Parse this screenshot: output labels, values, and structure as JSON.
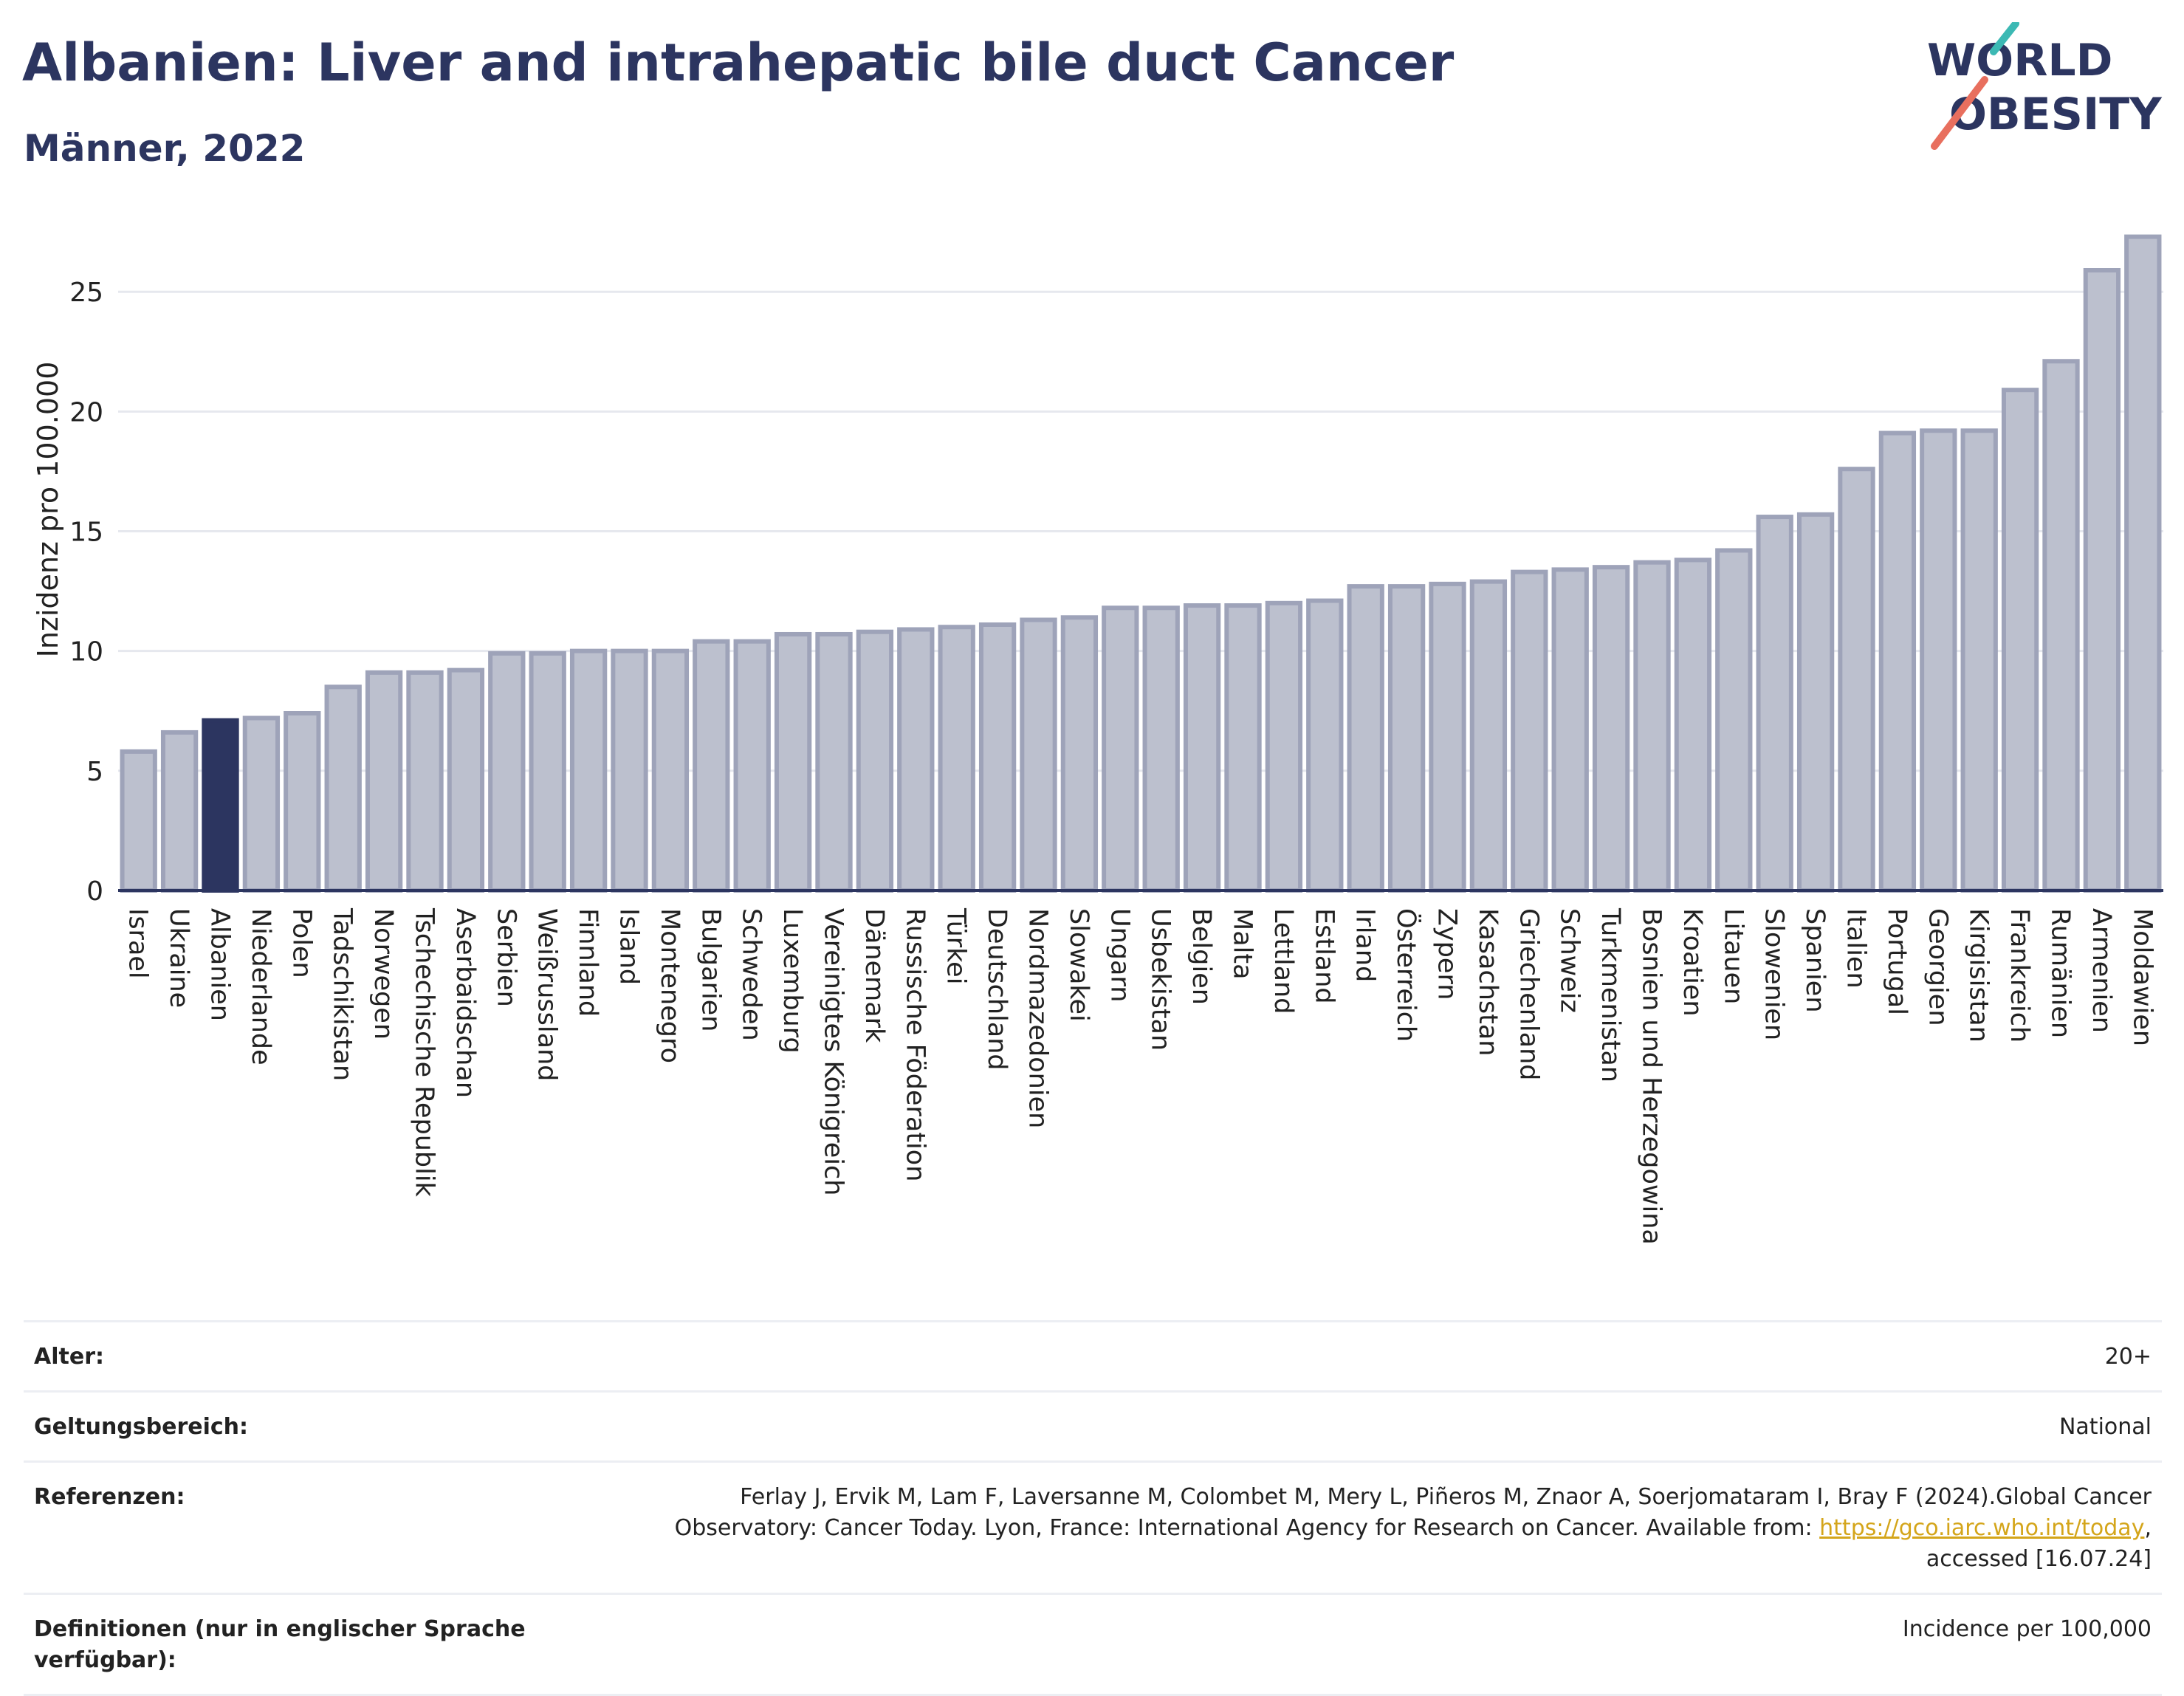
{
  "header": {
    "title": "Albanien: Liver and intrahepatic bile duct Cancer",
    "subtitle": "Männer, 2022"
  },
  "logo": {
    "line1": "WORLD",
    "line2": "OBESITY"
  },
  "chart_data": {
    "type": "bar",
    "ylabel": "Inzidenz pro 100.000",
    "xlabel": "",
    "ylim": [
      0,
      28
    ],
    "yticks": [
      0,
      5,
      10,
      15,
      20,
      25
    ],
    "grid": true,
    "highlight": "Albanien",
    "colors": {
      "default_fill": "#bcc0ce",
      "default_stroke": "#9ea3b9",
      "highlight_fill": "#2c3560"
    },
    "categories": [
      "Israel",
      "Ukraine",
      "Albanien",
      "Niederlande",
      "Polen",
      "Tadschikistan",
      "Norwegen",
      "Tschechische Republik",
      "Aserbaidschan",
      "Serbien",
      "Weißrussland",
      "Finnland",
      "Island",
      "Montenegro",
      "Bulgarien",
      "Schweden",
      "Luxemburg",
      "Vereinigtes Königreich",
      "Dänemark",
      "Russische Föderation",
      "Türkei",
      "Deutschland",
      "Nordmazedonien",
      "Slowakei",
      "Ungarn",
      "Usbekistan",
      "Belgien",
      "Malta",
      "Lettland",
      "Estland",
      "Irland",
      "Österreich",
      "Zypern",
      "Kasachstan",
      "Griechenland",
      "Schweiz",
      "Turkmenistan",
      "Bosnien und Herzegowina",
      "Kroatien",
      "Litauen",
      "Slowenien",
      "Spanien",
      "Italien",
      "Portugal",
      "Georgien",
      "Kirgisistan",
      "Frankreich",
      "Rumänien",
      "Armenien",
      "Moldawien"
    ],
    "values": [
      5.8,
      6.6,
      7.1,
      7.2,
      7.4,
      8.5,
      9.1,
      9.1,
      9.2,
      9.9,
      9.9,
      10.0,
      10.0,
      10.0,
      10.4,
      10.4,
      10.7,
      10.7,
      10.8,
      10.9,
      11.0,
      11.1,
      11.3,
      11.4,
      11.8,
      11.8,
      11.9,
      11.9,
      12.0,
      12.1,
      12.7,
      12.7,
      12.8,
      12.9,
      13.3,
      13.4,
      13.5,
      13.7,
      13.8,
      14.2,
      15.6,
      15.7,
      17.6,
      19.1,
      19.2,
      19.2,
      20.9,
      22.1,
      25.9,
      27.3
    ]
  },
  "info": {
    "age_label": "Alter:",
    "age_value": "20+",
    "scope_label": "Geltungsbereich:",
    "scope_value": "National",
    "references_label": "Referenzen:",
    "references_text": "Ferlay J, Ervik M, Lam F, Laversanne M, Colombet M, Mery L, Piñeros M, Znaor A, Soerjomataram I, Bray F (2024).Global Cancer Observatory: Cancer Today. Lyon, France: International Agency for Research on Cancer. Available from: ",
    "references_link": "https://gco.iarc.who.int/today",
    "references_suffix": ", accessed [16.07.24]",
    "definitions_label": "Definitionen (nur in englischer Sprache verfügbar):",
    "definitions_value": "Incidence per 100,000"
  }
}
